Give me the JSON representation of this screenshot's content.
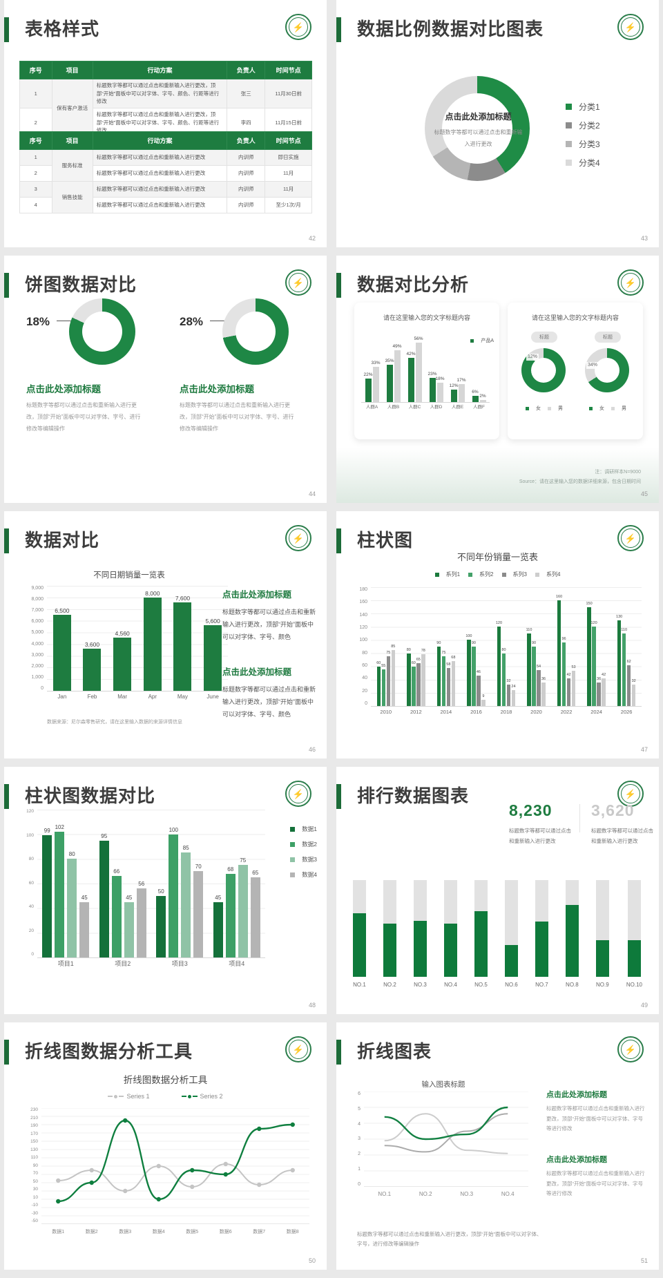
{
  "background": "#e9e9e9",
  "slides": [
    {
      "title": "表格样式",
      "page": "42",
      "tables": [
        {
          "headers": [
            "序号",
            "项目",
            "行动方案",
            "负责人",
            "时间节点"
          ],
          "rows": [
            [
              {
                "t": "1"
              },
              {
                "t": "保有客户激活",
                "rs": 2
              },
              {
                "t": "标题数字等都可以通过点击和重新输入进行更改，顶部“开始”面板中可以对字体、字号、颜色、行距等进行修改"
              },
              {
                "t": "张三"
              },
              {
                "t": "11月30日前"
              }
            ],
            [
              {
                "t": "2"
              },
              {
                "t": "标题数字等都可以通过点击和重新输入进行更改，顶部“开始”面板中可以对字体、字号、颜色、行距等进行修改"
              },
              {
                "t": "李四"
              },
              {
                "t": "11月15日前"
              }
            ]
          ]
        },
        {
          "headers": [
            "序号",
            "项目",
            "行动方案",
            "负责人",
            "时间节点"
          ],
          "rows": [
            [
              {
                "t": "1"
              },
              {
                "t": "服务标准",
                "rs": 2
              },
              {
                "t": "标题数字等都可以通过点击和重新输入进行更改"
              },
              {
                "t": "内训师"
              },
              {
                "t": "即日实施"
              }
            ],
            [
              {
                "t": "2"
              },
              {
                "t": "标题数字等都可以通过点击和重新输入进行更改"
              },
              {
                "t": "内训师"
              },
              {
                "t": "11月"
              }
            ],
            [
              {
                "t": "3"
              },
              {
                "t": "销售技能",
                "rs": 2
              },
              {
                "t": "标题数字等都可以通过点击和重新输入进行更改"
              },
              {
                "t": "内训师"
              },
              {
                "t": "11月"
              }
            ],
            [
              {
                "t": "4"
              },
              {
                "t": "标题数字等都可以通过点击和重新输入进行更改"
              },
              {
                "t": "内训师"
              },
              {
                "t": "至少1次/月"
              }
            ]
          ]
        }
      ]
    },
    {
      "title": "数据比例数据对比图表",
      "page": "43",
      "center_heading": "点击此处添加标题",
      "center_body": "标题数字等都可以通过点击和重新输入进行更改",
      "chart": {
        "type": "pie",
        "segments": [
          {
            "label": "分类1",
            "pct": 41,
            "color": "#1f8c46"
          },
          {
            "label": "分类2",
            "pct": 12,
            "color": "#8c8c8c"
          },
          {
            "label": "分类3",
            "pct": 13,
            "color": "#b5b5b5"
          },
          {
            "label": "分类4",
            "pct": 34,
            "color": "#dadada"
          }
        ]
      }
    },
    {
      "title": "饼图数据对比",
      "page": "44",
      "colors": {
        "green": "#1e8745",
        "gray": "#e3e3e3"
      },
      "items": [
        {
          "pct_label": "18%",
          "gray_pct": 18,
          "green_pct": 82,
          "heading": "点击此处添加标题",
          "body": "标题数字等都可以通过点击和重新输入进行更改，顶部“开始”面板中可以对字体、字号、进行修改等编辑操作"
        },
        {
          "pct_label": "28%",
          "gray_pct": 28,
          "green_pct": 72,
          "heading": "点击此处添加标题",
          "body": "标题数字等都可以通过点击和重新输入进行更改，顶部“开始”面板中可以对字体、字号、进行修改等编辑操作"
        }
      ]
    },
    {
      "title": "数据对比分析",
      "page": "45",
      "card1": {
        "heading": "请在这里输入您的文字标题内容",
        "legend": [
          {
            "label": "产品A",
            "color": "#1e7c40"
          }
        ],
        "chart": {
          "type": "bar",
          "categories": [
            "人群A",
            "人群B",
            "人群C",
            "人群D",
            "人群E",
            "人群F"
          ],
          "series": [
            {
              "color": "#1e7c40",
              "values": [
                22,
                35,
                42,
                23,
                12,
                6
              ],
              "labels": [
                "22%",
                "35%",
                "42%",
                "23%",
                "12%",
                "6%"
              ]
            },
            {
              "color": "#d6d6d6",
              "values": [
                33,
                49,
                56,
                18,
                17,
                2
              ],
              "labels": [
                "33%",
                "49%",
                "56%",
                "18%",
                "17%",
                "2%"
              ]
            }
          ],
          "ymax": 60
        }
      },
      "card2": {
        "heading": "请在这里输入您的文字标题内容",
        "pill": "标题",
        "donuts": [
          {
            "gray_label": "12%",
            "green_pct": 88
          },
          {
            "gray_label": "34%",
            "green_pct": 66
          }
        ],
        "colors": {
          "green": "#1e8745",
          "gray": "#dcdcdc"
        },
        "legend": [
          {
            "label": "女",
            "color": "#1e8745"
          },
          {
            "label": "男",
            "color": "#d9d9d9"
          }
        ]
      },
      "note": "注：调研样本N=9000",
      "source": "Source：请在这里输入您的数据详细来源，包含日期时间"
    },
    {
      "title": "数据对比",
      "page": "46",
      "chart_title": "不同日期销量一览表",
      "chart": {
        "type": "bar",
        "categories": [
          "Jan",
          "Feb",
          "Mar",
          "Apr",
          "May",
          "June"
        ],
        "values": [
          6500,
          3600,
          4560,
          8000,
          7600,
          5600
        ],
        "labels": [
          "6,500",
          "3,600",
          "4,560",
          "8,000",
          "7,600",
          "5,600"
        ],
        "ymax": 9000,
        "yticks": [
          "9,000",
          "8,000",
          "7,000",
          "6,000",
          "5,000",
          "4,000",
          "3,000",
          "2,000",
          "1,000",
          "0"
        ],
        "color": "#1e7c40"
      },
      "source": "数据来源：尼尔森零售研究，请在这里输入数据的来源详情信息",
      "blocks": [
        {
          "heading": "点击此处添加标题",
          "body": "标题数字等都可以通过点击和重新输入进行更改，顶部“开始”面板中可以对字体、字号、颜色"
        },
        {
          "heading": "点击此处添加标题",
          "body": "标题数字等都可以通过点击和重新输入进行更改，顶部“开始”面板中可以对字体、字号、颜色"
        }
      ]
    },
    {
      "title": "柱状图",
      "page": "47",
      "chart_title": "不同年份销量一览表",
      "chart": {
        "type": "bar",
        "categories": [
          "2010",
          "2012",
          "2014",
          "2016",
          "2018",
          "2020",
          "2022",
          "2024",
          "2026"
        ],
        "series": [
          {
            "name": "系列1",
            "color": "#1b7a3d",
            "values": [
              60,
              80,
              90,
              100,
              120,
              110,
              160,
              150,
              130
            ]
          },
          {
            "name": "系列2",
            "color": "#43a169",
            "values": [
              55,
              60,
              75,
              90,
              80,
              90,
              96,
              120,
              110
            ]
          },
          {
            "name": "系列3",
            "color": "#8b8b8b",
            "values": [
              75,
              65,
              58,
              46,
              32,
              54,
              42,
              36,
              62
            ]
          },
          {
            "name": "系列4",
            "color": "#cdcdcd",
            "values": [
              85,
              78,
              68,
              9,
              24,
              36,
              53,
              42,
              32
            ]
          }
        ],
        "ymax": 180,
        "yticks": [
          "180",
          "160",
          "140",
          "120",
          "100",
          "80",
          "60",
          "40",
          "20",
          "0"
        ]
      }
    },
    {
      "title": "柱状图数据对比",
      "page": "48",
      "chart": {
        "type": "bar",
        "categories": [
          "项目1",
          "项目2",
          "项目3",
          "项目4"
        ],
        "series": [
          {
            "name": "数据1",
            "color": "#14713a",
            "values": [
              99,
              95,
              50,
              45
            ]
          },
          {
            "name": "数据2",
            "color": "#3da066",
            "values": [
              102,
              66,
              100,
              68
            ]
          },
          {
            "name": "数据3",
            "color": "#8fc3a6",
            "values": [
              80,
              45,
              85,
              75
            ]
          },
          {
            "name": "数据4",
            "color": "#b4b4b4",
            "values": [
              45,
              56,
              70,
              65
            ]
          }
        ],
        "ymax": 120,
        "yticks": [
          "120",
          "100",
          "80",
          "60",
          "40",
          "20",
          "0"
        ]
      }
    },
    {
      "title": "排行数据图表",
      "page": "49",
      "stats": [
        {
          "value": "8,230",
          "color": "#1e7c40",
          "caption": "标题数字等都可以通过点击和重新输入进行更改"
        },
        {
          "value": "3,620",
          "color": "#c9c9c9",
          "caption": "标题数字等都可以通过点击和重新输入进行更改"
        }
      ],
      "chart": {
        "type": "bar",
        "categories": [
          "NO.1",
          "NO.2",
          "NO.3",
          "NO.4",
          "NO.5",
          "NO.6",
          "NO.7",
          "NO.8",
          "NO.9",
          "NO.10"
        ],
        "fractions": [
          0.66,
          0.55,
          0.58,
          0.55,
          0.68,
          0.33,
          0.57,
          0.74,
          0.38,
          0.38
        ],
        "fill_color": "#0e7a3b",
        "track_color": "#e2e2e2"
      }
    },
    {
      "title": "折线图数据分析工具",
      "page": "50",
      "chart_title": "折线图数据分析工具",
      "chart": {
        "type": "line",
        "categories": [
          "数据1",
          "数据2",
          "数据3",
          "数据4",
          "数据5",
          "数据6",
          "数据7",
          "数据8"
        ],
        "series": [
          {
            "name": "Series 1",
            "color": "#c4c4c4",
            "values": [
              55,
              80,
              30,
              90,
              40,
              95,
              45,
              80
            ]
          },
          {
            "name": "Series 2",
            "color": "#0f7f3f",
            "values": [
              5,
              50,
              200,
              10,
              80,
              70,
              180,
              190
            ]
          }
        ],
        "ymax": 230,
        "ymin": -50,
        "yticks": [
          "230",
          "210",
          "190",
          "170",
          "150",
          "130",
          "110",
          "90",
          "70",
          "50",
          "30",
          "10",
          "-10",
          "-30",
          "-50"
        ]
      }
    },
    {
      "title": "折线图表",
      "page": "51",
      "chart_title": "输入图表标题",
      "chart": {
        "type": "line",
        "categories": [
          "NO.1",
          "NO.2",
          "NO.3",
          "NO.4"
        ],
        "series": [
          {
            "color": "#cccccc",
            "values": [
              2.9,
              4.6,
              2.3,
              2.1
            ]
          },
          {
            "color": "#ababab",
            "values": [
              2.6,
              2.2,
              3.5,
              4.6
            ]
          },
          {
            "color": "#128042",
            "values": [
              4.4,
              3.0,
              3.3,
              5.0
            ]
          }
        ],
        "ymax": 6,
        "ymin": 0,
        "yticks": [
          "6",
          "5",
          "4",
          "3",
          "2",
          "1",
          "0"
        ]
      },
      "blocks": [
        {
          "heading": "点击此处添加标题",
          "body": "标题数字等都可以通过点击和重新输入进行更改，顶部“开始”面板中可以对字体、字号等进行修改"
        },
        {
          "heading": "点击此处添加标题",
          "body": "标题数字等都可以通过点击和重新输入进行更改，顶部“开始”面板中可以对字体、字号等进行修改"
        }
      ],
      "footer": "标题数字等都可以通过点击和重新输入进行更改，顶部“开始”面板中可以对字体、字号，进行修改等编辑操作"
    }
  ]
}
